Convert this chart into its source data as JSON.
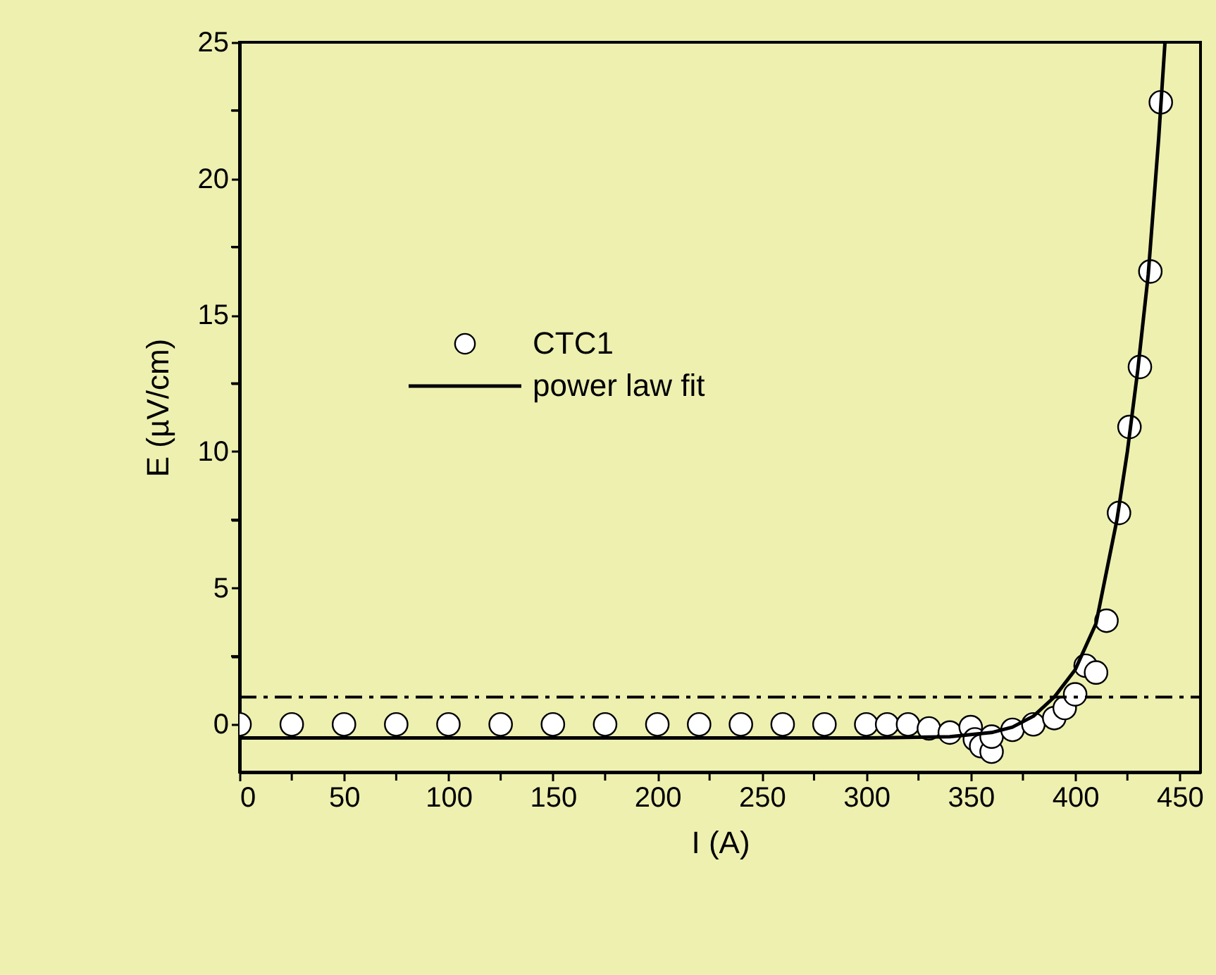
{
  "chart_data": {
    "type": "scatter",
    "xlabel": "I (A)",
    "ylabel": "E (µV/cm)",
    "xlim": [
      0,
      460
    ],
    "ylim": [
      -1.75,
      25
    ],
    "xticks": [
      0,
      {
        "value": 25,
        "label": null
      },
      50,
      {
        "value": 75,
        "label": null
      },
      100,
      {
        "value": 125,
        "label": null
      },
      150,
      {
        "value": 175,
        "label": null
      },
      200,
      {
        "value": 225,
        "label": null
      },
      250,
      {
        "value": 275,
        "label": null
      },
      300,
      {
        "value": 325,
        "label": null
      },
      350,
      {
        "value": 375,
        "label": null
      },
      400,
      {
        "value": 425,
        "label": null
      },
      450
    ],
    "yticks": [
      0,
      {
        "value": 2.5,
        "label": null
      },
      5,
      {
        "value": 7.5,
        "label": null
      },
      10,
      {
        "value": 12.5,
        "label": null
      },
      15,
      {
        "value": 17.5,
        "label": null
      },
      20,
      {
        "value": 22.5,
        "label": null
      },
      25
    ],
    "grid": false,
    "legend": "left",
    "series": [
      {
        "name": "CTC1",
        "type": "scatter",
        "marker": "circle",
        "color": "#ffffff",
        "x": [
          0,
          25,
          50,
          75,
          100,
          125,
          150,
          175,
          200,
          220,
          240,
          260,
          280,
          300,
          310,
          320,
          330,
          340,
          350,
          352,
          355,
          360,
          360,
          370,
          380,
          390,
          395,
          400,
          405,
          410,
          415,
          421,
          426,
          431,
          436,
          441
        ],
        "values": [
          0,
          0,
          0,
          0,
          0,
          0,
          0,
          0,
          0,
          0,
          0,
          0,
          0,
          0,
          0,
          0,
          -0.15,
          -0.3,
          -0.1,
          -0.55,
          -0.8,
          -1.0,
          -0.45,
          -0.2,
          0,
          0.23,
          0.6,
          1.1,
          2.15,
          1.9,
          3.8,
          7.75,
          10.9,
          13.1,
          16.6,
          22.8
        ]
      },
      {
        "name": "power law fit",
        "type": "line",
        "color": "#000000",
        "marker": "none",
        "line_style": "solid",
        "x": [
          0,
          300,
          340,
          360,
          370,
          380,
          390,
          400,
          410,
          420,
          425,
          430,
          435,
          440,
          443
        ],
        "values": [
          -0.5,
          -0.5,
          -0.45,
          -0.3,
          -0.1,
          0.3,
          1.0,
          2.0,
          3.7,
          7.5,
          10,
          13,
          16.5,
          21.5,
          25
        ]
      }
    ],
    "ref_lines": [
      {
        "axis": "y",
        "value": 1,
        "label": null,
        "color": "#000000",
        "line_style": "dashed"
      }
    ]
  }
}
